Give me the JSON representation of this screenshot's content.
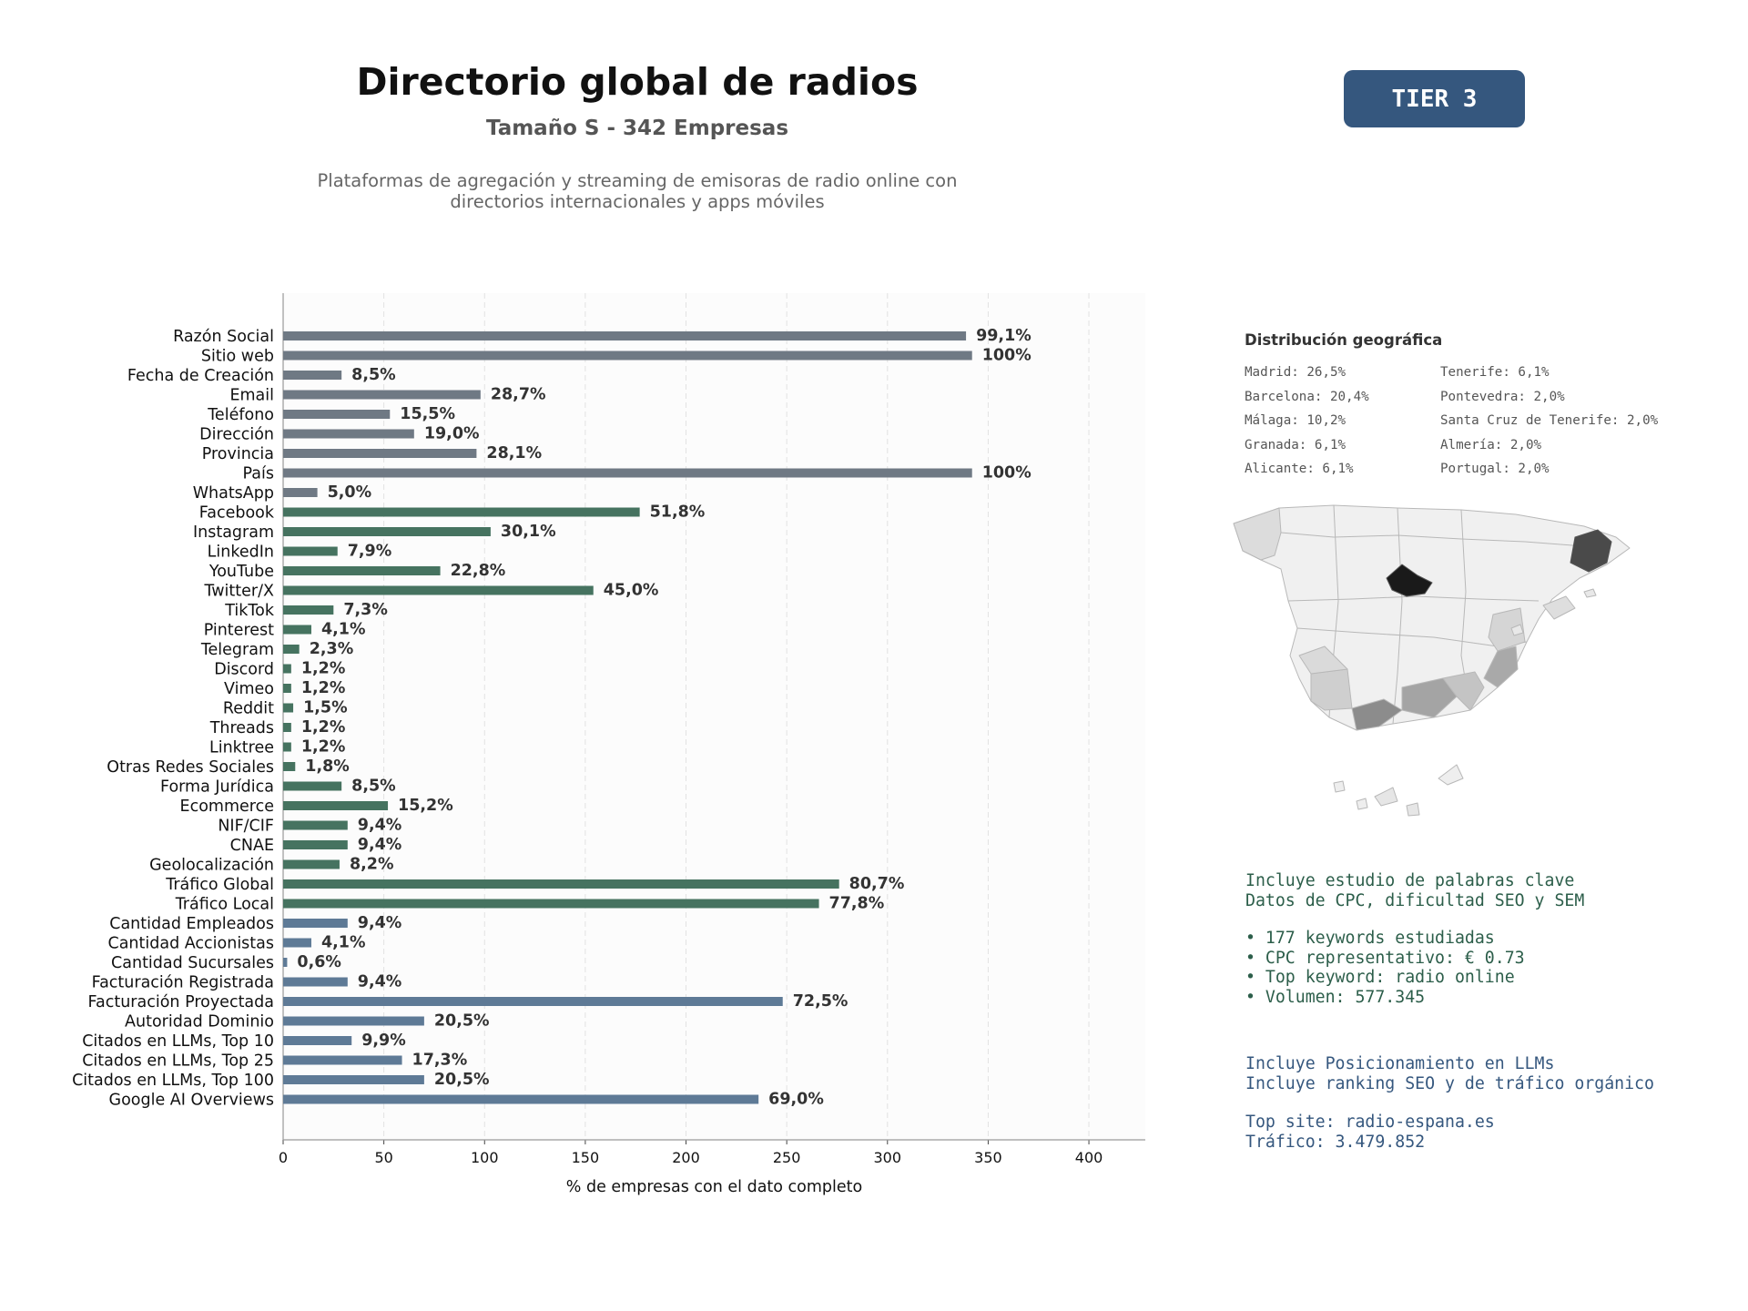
{
  "header": {
    "title": "Directorio global de radios",
    "subtitle": "Tamaño S - 342 Empresas",
    "description_line1": "Plataformas de agregación y streaming de emisoras de radio online con",
    "description_line2": "directorios internacionales y apps móviles",
    "tier_badge": "TIER 3"
  },
  "colors": {
    "basic": "#6f7984",
    "social": "#467360",
    "business": "#5e7a96",
    "badge": "#35577e",
    "green_text": "#2c5e4a",
    "blue_text": "#35577e"
  },
  "chart_data": {
    "type": "bar",
    "orientation": "horizontal",
    "xlabel": "% de empresas con el dato completo",
    "xlim": [
      0,
      428
    ],
    "xticks": [
      0,
      50,
      100,
      150,
      200,
      250,
      300,
      350,
      400
    ],
    "grid": "vertical dashed",
    "categories": [
      "Razón Social",
      "Sitio web",
      "Fecha de Creación",
      "Email",
      "Teléfono",
      "Dirección",
      "Provincia",
      "País",
      "WhatsApp",
      "Facebook",
      "Instagram",
      "LinkedIn",
      "YouTube",
      "Twitter/X",
      "TikTok",
      "Pinterest",
      "Telegram",
      "Discord",
      "Vimeo",
      "Reddit",
      "Threads",
      "Linktree",
      "Otras Redes Sociales",
      "Forma Jurídica",
      "Ecommerce",
      "NIF/CIF",
      "CNAE",
      "Geolocalización",
      "Tráfico Global",
      "Tráfico Local",
      "Cantidad Empleados",
      "Cantidad Accionistas",
      "Cantidad Sucursales",
      "Facturación Registrada",
      "Facturación Proyectada",
      "Autoridad Dominio",
      "Citados en LLMs, Top 10",
      "Citados en LLMs, Top 25",
      "Citados en LLMs, Top 100",
      "Google AI Overviews"
    ],
    "values": [
      339,
      342,
      29,
      98,
      53,
      65,
      96,
      342,
      17,
      177,
      103,
      27,
      78,
      154,
      25,
      14,
      8,
      4,
      4,
      5,
      4,
      4,
      6,
      29,
      52,
      32,
      32,
      28,
      276,
      266,
      32,
      14,
      2,
      32,
      248,
      70,
      34,
      59,
      70,
      236
    ],
    "labels": [
      "99,1%",
      "100%",
      "8,5%",
      "28,7%",
      "15,5%",
      "19,0%",
      "28,1%",
      "100%",
      "5,0%",
      "51,8%",
      "30,1%",
      "7,9%",
      "22,8%",
      "45,0%",
      "7,3%",
      "4,1%",
      "2,3%",
      "1,2%",
      "1,2%",
      "1,5%",
      "1,2%",
      "1,2%",
      "1,8%",
      "8,5%",
      "15,2%",
      "9,4%",
      "9,4%",
      "8,2%",
      "80,7%",
      "77,8%",
      "9,4%",
      "4,1%",
      "0,6%",
      "9,4%",
      "72,5%",
      "20,5%",
      "9,9%",
      "17,3%",
      "20,5%",
      "69,0%"
    ],
    "groups": [
      "basic",
      "basic",
      "basic",
      "basic",
      "basic",
      "basic",
      "basic",
      "basic",
      "basic",
      "social",
      "social",
      "social",
      "social",
      "social",
      "social",
      "social",
      "social",
      "social",
      "social",
      "social",
      "social",
      "social",
      "social",
      "social",
      "social",
      "social",
      "social",
      "social",
      "social",
      "social",
      "business",
      "business",
      "business",
      "business",
      "business",
      "business",
      "business",
      "business",
      "business",
      "business"
    ]
  },
  "geo": {
    "title": "Distribución geográfica",
    "items": [
      "Madrid: 26,5%",
      "Tenerife: 6,1%",
      "Barcelona: 20,4%",
      "Pontevedra: 2,0%",
      "Málaga: 10,2%",
      "Santa Cruz de Tenerife: 2,0%",
      "Granada: 6,1%",
      "Almería: 2,0%",
      "Alicante: 6,1%",
      "Portugal: 2,0%"
    ]
  },
  "info": {
    "keywords_line1": "Incluye estudio de palabras clave",
    "keywords_line2": "Datos de CPC, dificultad SEO y SEM",
    "bullet1": "• 177 keywords estudiadas",
    "bullet2": "• CPC representativo: € 0.73",
    "bullet3": "• Top keyword: radio online",
    "bullet4": "• Volumen: 577.345",
    "llm_line1": "Incluye Posicionamiento en LLMs",
    "llm_line2": "Incluye ranking SEO y de tráfico orgánico",
    "top_site": "Top site: radio-espana.es",
    "traffic": "Tráfico: 3.479.852"
  }
}
